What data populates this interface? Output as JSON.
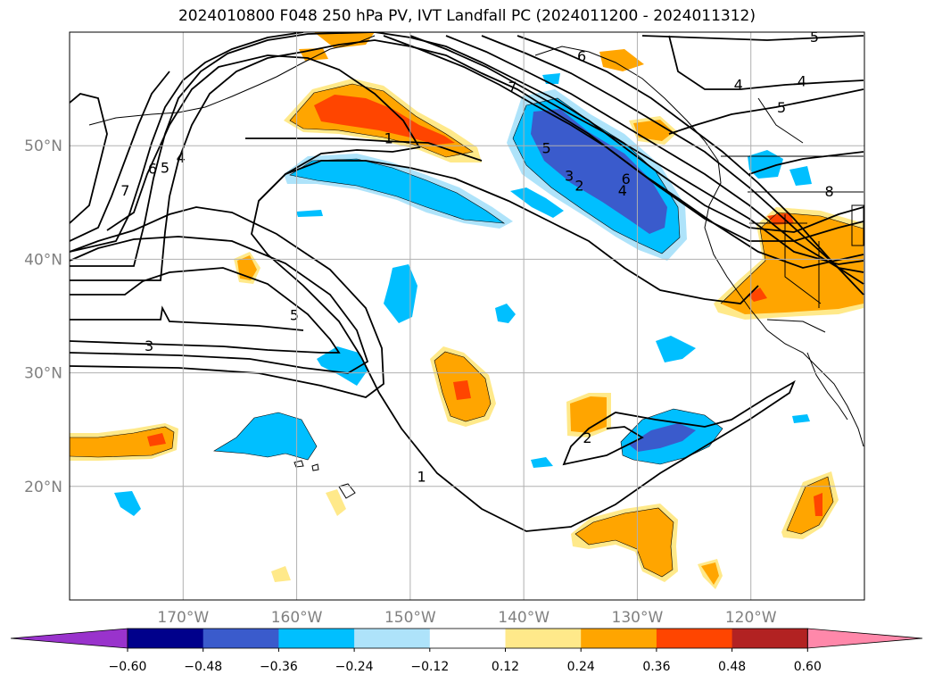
{
  "title": "2024010800 F048 250 hPa PV, IVT Landfall PC (2024011200 - 2024011312)",
  "map": {
    "lon_range": [
      -180,
      -110
    ],
    "lat_range": [
      10,
      60
    ],
    "lon_ticks": [
      {
        "lon": -170,
        "label": "170°W"
      },
      {
        "lon": -160,
        "label": "160°W"
      },
      {
        "lon": -150,
        "label": "150°W"
      },
      {
        "lon": -140,
        "label": "140°W"
      },
      {
        "lon": -130,
        "label": "130°W"
      },
      {
        "lon": -120,
        "label": "120°W"
      }
    ],
    "lat_ticks": [
      {
        "lat": 20,
        "label": "20°N"
      },
      {
        "lat": 30,
        "label": "30°N"
      },
      {
        "lat": 40,
        "label": "40°N"
      },
      {
        "lat": 50,
        "label": "50°N"
      }
    ],
    "contour_labels": [
      {
        "text": "7",
        "lon": -141.0,
        "lat": 55.2
      },
      {
        "text": "6",
        "lon": -134.9,
        "lat": 57.9
      },
      {
        "text": "5",
        "lon": -114.4,
        "lat": 59.6
      },
      {
        "text": "4",
        "lon": -115.5,
        "lat": 55.7
      },
      {
        "text": "4",
        "lon": -121.1,
        "lat": 55.4
      },
      {
        "text": "5",
        "lon": -117.3,
        "lat": 53.4
      },
      {
        "text": "1",
        "lon": -151.9,
        "lat": 50.7
      },
      {
        "text": "5",
        "lon": -138.0,
        "lat": 49.8
      },
      {
        "text": "3",
        "lon": -136.0,
        "lat": 47.4
      },
      {
        "text": "2",
        "lon": -135.1,
        "lat": 46.5
      },
      {
        "text": "6",
        "lon": -131.0,
        "lat": 47.1
      },
      {
        "text": "4",
        "lon": -131.3,
        "lat": 46.1
      },
      {
        "text": "8",
        "lon": -113.1,
        "lat": 46.0
      },
      {
        "text": "7",
        "lon": -175.1,
        "lat": 46.1
      },
      {
        "text": "6",
        "lon": -172.7,
        "lat": 48.0
      },
      {
        "text": "5",
        "lon": -171.6,
        "lat": 48.1
      },
      {
        "text": "4",
        "lon": -170.2,
        "lat": 49.0
      },
      {
        "text": "5",
        "lon": -160.2,
        "lat": 35.1
      },
      {
        "text": "3",
        "lon": -173.0,
        "lat": 32.4
      },
      {
        "text": "2",
        "lon": -134.4,
        "lat": 24.3
      },
      {
        "text": "1",
        "lon": -149.0,
        "lat": 20.9
      }
    ]
  },
  "colorbar": {
    "colors": [
      "#9933cc",
      "#00008b",
      "#3a5bcc",
      "#00bfff",
      "#aee3fa",
      "#ffffff",
      "#ffe98a",
      "#ffa500",
      "#ff4500",
      "#b22222",
      "#ff88aa"
    ],
    "tick_labels": [
      "−0.60",
      "−0.48",
      "−0.36",
      "−0.24",
      "−0.12",
      "0.12",
      "0.24",
      "0.36",
      "0.48",
      "0.60"
    ]
  }
}
